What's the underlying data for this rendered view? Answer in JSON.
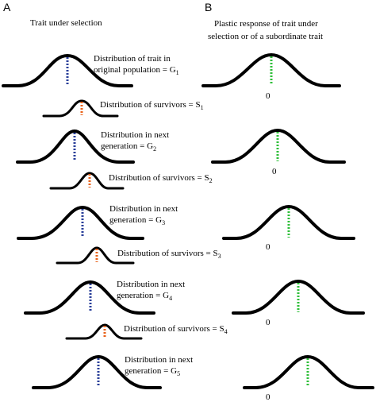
{
  "panels": {
    "a": {
      "letter": "A",
      "title": "Trait under selection",
      "g1_line1": "Distribution of trait in",
      "g1_line2": "original population = G",
      "g1_sub": "1",
      "s1_text": "Distribution of survivors = S",
      "s1_sub": "1",
      "g2_line1": "Distribution in next",
      "g2_line2": "generation = G",
      "g2_sub": "2",
      "s2_text": "Distribution of survivors = S",
      "s2_sub": "2",
      "g3_line1": "Distribution in next",
      "g3_line2": "generation = G",
      "g3_sub": "3",
      "s3_text": "Distribution of survivors = S",
      "s3_sub": "3",
      "g4_line1": "Distribution in next",
      "g4_line2": "generation = G",
      "g4_sub": "4",
      "s4_text": "Distribution of survivors = S",
      "s4_sub": "4",
      "g5_line1": "Distribution in next",
      "g5_line2": "generation = G",
      "g5_sub": "5"
    },
    "b": {
      "letter": "B",
      "title_line1": "Plastic response of trait under",
      "title_line2": "selection or of a subordinate trait",
      "zero_label": "0"
    }
  },
  "colors": {
    "curve": "#000000",
    "population_mean": "#2a3f9a",
    "survivor_mean": "#e8621a",
    "plastic_mean": "#2fbf3a"
  }
}
